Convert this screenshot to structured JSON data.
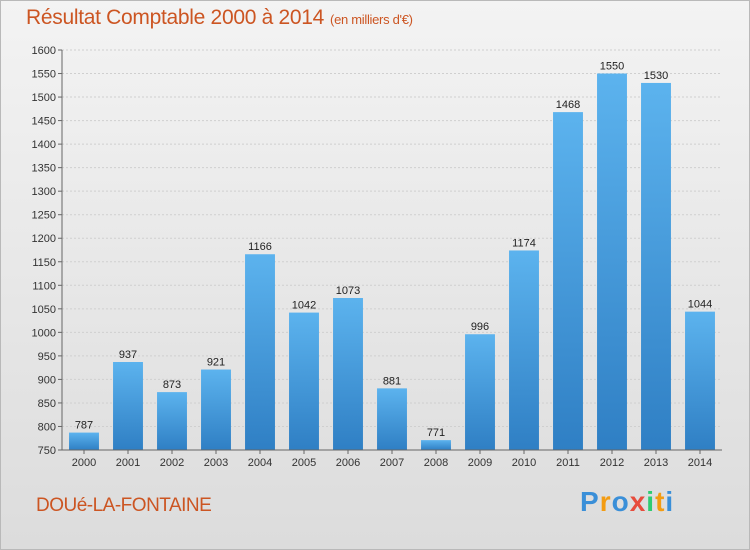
{
  "title": "Résultat Comptable 2000 à 2014",
  "unit_label": "(en milliers d'€)",
  "place": "DOUé-LA-FONTAINE",
  "logo": {
    "letters": [
      "P",
      "r",
      "o",
      "x",
      "i",
      "t",
      "i"
    ],
    "colors": [
      "#3a8fd8",
      "#f39c12",
      "#3a8fd8",
      "#e74c3c",
      "#2ecc71",
      "#f39c12",
      "#3a8fd8"
    ]
  },
  "colors": {
    "title": "#cc5522",
    "bar_top": "#5cb3ee",
    "bar_bottom": "#2f7fc4"
  },
  "chart_data": {
    "type": "bar",
    "title": "Résultat Comptable 2000 à 2014",
    "categories": [
      "2000",
      "2001",
      "2002",
      "2003",
      "2004",
      "2005",
      "2006",
      "2007",
      "2008",
      "2009",
      "2010",
      "2011",
      "2012",
      "2013",
      "2014"
    ],
    "values": [
      787,
      937,
      873,
      921,
      1166,
      1042,
      1073,
      881,
      771,
      996,
      1174,
      1468,
      1550,
      1530,
      1044
    ],
    "ylim": [
      750,
      1600
    ],
    "yticks": [
      750,
      800,
      850,
      900,
      950,
      1000,
      1050,
      1100,
      1150,
      1200,
      1250,
      1300,
      1350,
      1400,
      1450,
      1500,
      1550,
      1600
    ],
    "grid": true,
    "xlabel": "",
    "ylabel": ""
  }
}
